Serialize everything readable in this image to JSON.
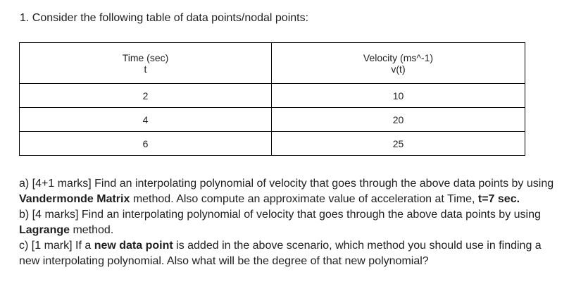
{
  "question": {
    "heading": "1. Consider the following table of data points/nodal points:"
  },
  "table": {
    "headers": [
      {
        "line1": "Time (sec)",
        "line2": "t"
      },
      {
        "line1": "Velocity (ms^-1)",
        "line2": "v(t)"
      }
    ],
    "rows": [
      [
        "2",
        "10"
      ],
      [
        "4",
        "20"
      ],
      [
        "6",
        "25"
      ]
    ]
  },
  "parts": {
    "a": {
      "t1": "a) [4+1 marks] Find an interpolating polynomial of velocity that goes through the above data points by using ",
      "b1": "Vandermonde Matrix",
      "t2": " method. Also compute an approximate value of acceleration at Time, ",
      "b2": "t=7 sec."
    },
    "b": {
      "t1": "b) [4 marks] Find an interpolating polynomial of velocity that goes through the above data points by using ",
      "b1": "Lagrange",
      "t2": " method."
    },
    "c": {
      "t1": "c) [1 mark] If a ",
      "b1": "new data point",
      "t2": " is added in the above scenario, which method you should use in finding a new interpolating polynomial. Also what will be the degree of that new polynomial?"
    }
  }
}
